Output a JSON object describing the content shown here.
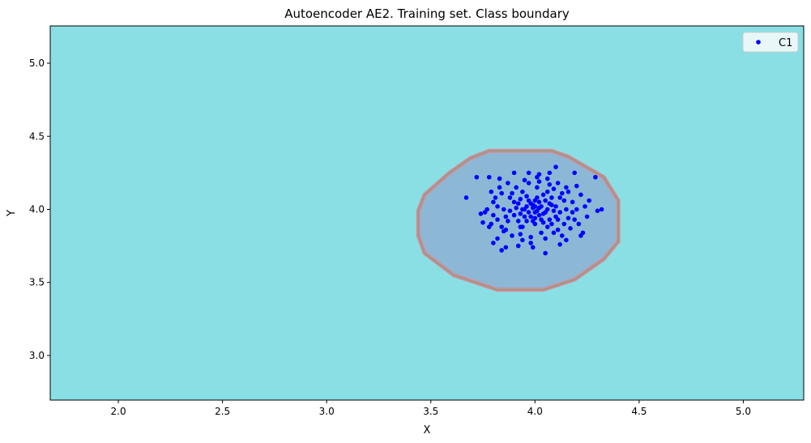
{
  "chart_data": {
    "type": "scatter",
    "title": "Autoencoder AE2. Training set. Class boundary",
    "xlabel": "X",
    "ylabel": "Y",
    "xlim": [
      1.673,
      5.29
    ],
    "ylim": [
      2.695,
      5.255
    ],
    "xticks": [
      2.0,
      2.5,
      3.0,
      3.5,
      4.0,
      4.5,
      5.0
    ],
    "yticks": [
      3.0,
      3.5,
      4.0,
      4.5,
      5.0
    ],
    "xtick_labels": [
      "2.0",
      "2.5",
      "3.0",
      "3.5",
      "4.0",
      "4.5",
      "5.0"
    ],
    "ytick_labels": [
      "3.0",
      "3.5",
      "4.0",
      "4.5",
      "5.0"
    ],
    "grid": false,
    "legend": {
      "placement": "top-right",
      "entries": [
        {
          "label": "C1",
          "color": "#0000ff"
        }
      ]
    },
    "colors": {
      "outside": "#8adfe5",
      "inside": "#8cb8d6",
      "boundary": "#d48a98",
      "boundary_inner": "#6aa878",
      "points": "#0000ff"
    },
    "boundary": [
      [
        3.78,
        4.4
      ],
      [
        4.08,
        4.4
      ],
      [
        4.16,
        4.36
      ],
      [
        4.33,
        4.22
      ],
      [
        4.4,
        4.06
      ],
      [
        4.4,
        3.78
      ],
      [
        4.33,
        3.66
      ],
      [
        4.19,
        3.52
      ],
      [
        4.04,
        3.45
      ],
      [
        3.82,
        3.45
      ],
      [
        3.61,
        3.55
      ],
      [
        3.47,
        3.7
      ],
      [
        3.44,
        3.82
      ],
      [
        3.44,
        3.99
      ],
      [
        3.47,
        4.1
      ],
      [
        3.59,
        4.25
      ],
      [
        3.69,
        4.35
      ]
    ],
    "series": [
      {
        "name": "C1",
        "points": [
          [
            3.67,
            4.08
          ],
          [
            3.72,
            4.22
          ],
          [
            3.75,
            3.91
          ],
          [
            4.29,
            4.22
          ],
          [
            4.32,
            4.0
          ],
          [
            4.3,
            3.99
          ],
          [
            3.8,
            3.77
          ],
          [
            3.84,
            3.72
          ],
          [
            4.05,
            3.7
          ],
          [
            3.9,
            4.25
          ],
          [
            4.1,
            4.29
          ],
          [
            4.19,
            4.25
          ],
          [
            3.86,
            3.74
          ],
          [
            3.99,
            3.74
          ],
          [
            4.12,
            3.76
          ],
          [
            4.22,
            3.82
          ],
          [
            4.25,
            3.95
          ],
          [
            4.26,
            4.06
          ],
          [
            4.2,
            4.16
          ],
          [
            3.78,
            4.22
          ],
          [
            3.83,
            4.21
          ],
          [
            3.74,
            3.97
          ],
          [
            3.76,
            3.98
          ],
          [
            3.8,
            4.05
          ],
          [
            3.78,
            3.88
          ],
          [
            3.82,
            3.8
          ],
          [
            4.23,
            3.84
          ],
          [
            4.15,
            3.79
          ],
          [
            3.92,
            3.75
          ],
          [
            4.07,
            4.25
          ],
          [
            3.97,
            4.25
          ],
          [
            4.01,
            4.22
          ],
          [
            3.95,
            4.0
          ],
          [
            4.0,
            4.02
          ],
          [
            4.05,
            3.98
          ],
          [
            3.98,
            3.95
          ],
          [
            4.02,
            4.05
          ],
          [
            4.08,
            4.03
          ],
          [
            3.92,
            4.04
          ],
          [
            3.96,
            3.92
          ],
          [
            4.1,
            3.95
          ],
          [
            4.04,
            4.1
          ],
          [
            3.9,
            3.96
          ],
          [
            4.12,
            4.08
          ],
          [
            3.88,
            4.08
          ],
          [
            4.0,
            3.9
          ],
          [
            4.06,
            3.88
          ],
          [
            3.94,
            4.12
          ],
          [
            4.15,
            4.0
          ],
          [
            3.85,
            4.0
          ],
          [
            4.01,
            4.15
          ],
          [
            4.09,
            4.14
          ],
          [
            3.93,
            3.88
          ],
          [
            4.14,
            3.9
          ],
          [
            3.87,
            3.92
          ],
          [
            4.18,
            4.05
          ],
          [
            3.82,
            4.02
          ],
          [
            4.03,
            3.84
          ],
          [
            3.97,
            4.18
          ],
          [
            4.11,
            3.86
          ],
          [
            3.99,
            4.01
          ],
          [
            4.01,
            3.99
          ],
          [
            4.03,
            4.02
          ],
          [
            3.97,
            3.98
          ],
          [
            4.02,
            3.96
          ],
          [
            3.98,
            4.04
          ],
          [
            4.06,
            4.0
          ],
          [
            3.94,
            4.0
          ],
          [
            4.0,
            4.06
          ],
          [
            4.0,
            3.94
          ],
          [
            4.05,
            4.06
          ],
          [
            3.95,
            3.95
          ],
          [
            4.07,
            3.93
          ],
          [
            3.93,
            4.07
          ],
          [
            4.04,
            3.91
          ],
          [
            3.96,
            4.09
          ],
          [
            4.09,
            3.99
          ],
          [
            3.91,
            4.01
          ],
          [
            4.08,
            4.08
          ],
          [
            3.92,
            3.92
          ],
          [
            4.13,
            4.11
          ],
          [
            3.86,
            3.86
          ],
          [
            4.16,
            3.94
          ],
          [
            3.84,
            4.11
          ],
          [
            4.02,
            4.19
          ],
          [
            3.98,
            3.81
          ],
          [
            4.2,
            4.0
          ],
          [
            3.8,
            3.96
          ],
          [
            4.11,
            4.18
          ],
          [
            3.89,
            3.82
          ],
          [
            4.17,
            3.87
          ],
          [
            3.83,
            4.15
          ],
          [
            4.05,
            3.8
          ],
          [
            3.95,
            4.2
          ],
          [
            4.22,
            4.1
          ],
          [
            3.79,
            3.9
          ],
          [
            4.19,
            3.93
          ],
          [
            3.81,
            4.08
          ],
          [
            4.07,
            4.17
          ],
          [
            3.93,
            3.83
          ],
          [
            4.0,
            3.98
          ],
          [
            4.02,
            4.01
          ],
          [
            3.99,
            4.03
          ],
          [
            4.04,
            3.97
          ],
          [
            3.96,
            4.02
          ],
          [
            4.01,
            4.08
          ],
          [
            3.99,
            3.92
          ],
          [
            4.07,
            4.04
          ],
          [
            3.93,
            3.97
          ],
          [
            4.1,
            4.02
          ],
          [
            3.9,
            4.05
          ],
          [
            4.03,
            3.93
          ],
          [
            3.97,
            4.06
          ],
          [
            4.12,
            3.98
          ],
          [
            3.88,
            3.99
          ],
          [
            4.06,
            4.12
          ],
          [
            3.94,
            3.88
          ],
          [
            4.14,
            4.06
          ],
          [
            3.86,
            3.95
          ],
          [
            4.08,
            3.9
          ],
          [
            3.91,
            4.15
          ],
          [
            4.09,
            3.84
          ],
          [
            4.15,
            4.15
          ],
          [
            3.85,
            3.85
          ],
          [
            4.18,
            3.98
          ],
          [
            3.82,
            3.93
          ],
          [
            4.02,
            4.24
          ],
          [
            3.98,
            3.77
          ],
          [
            4.24,
            4.02
          ],
          [
            3.77,
            4.0
          ],
          [
            4.13,
            3.82
          ],
          [
            3.87,
            4.18
          ],
          [
            4.21,
            3.9
          ],
          [
            3.79,
            4.12
          ],
          [
            4.06,
            4.21
          ],
          [
            3.94,
            3.79
          ],
          [
            4.16,
            4.12
          ],
          [
            3.84,
            3.88
          ],
          [
            4.11,
            3.93
          ],
          [
            3.89,
            4.11
          ]
        ]
      }
    ]
  }
}
